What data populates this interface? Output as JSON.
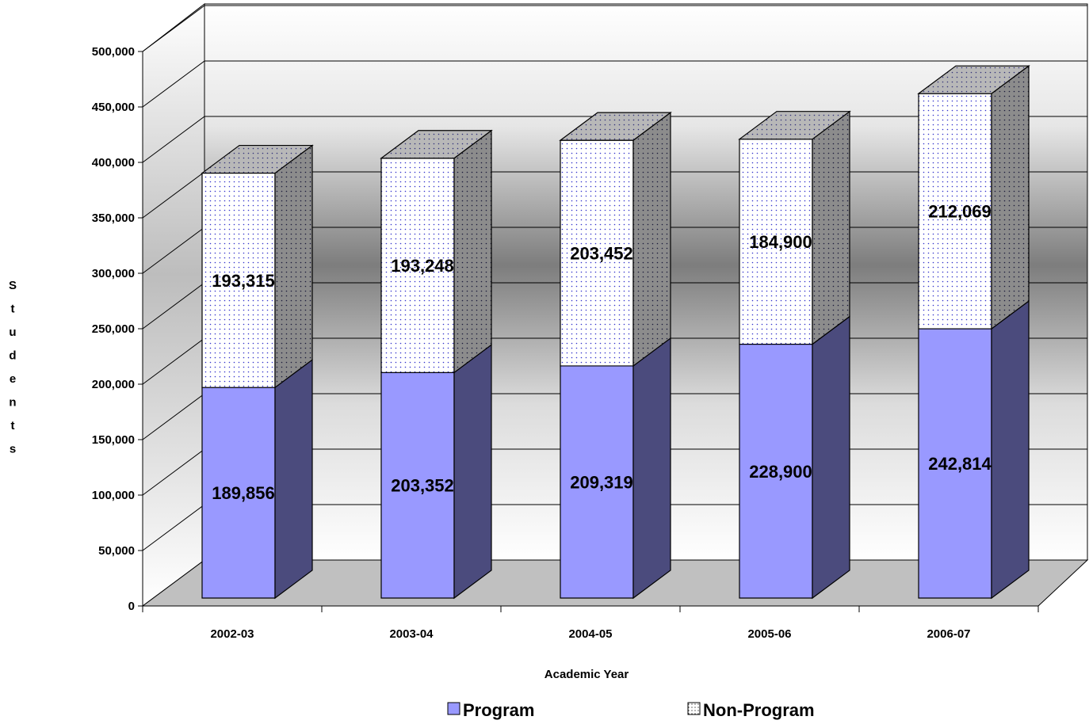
{
  "chart_data": {
    "type": "bar",
    "stacked": true,
    "three_d": true,
    "categories": [
      "2002-03",
      "2003-04",
      "2004-05",
      "2005-06",
      "2006-07"
    ],
    "series": [
      {
        "name": "Program",
        "values": [
          189856,
          203352,
          209319,
          228900,
          242814
        ],
        "color": "#9999FF",
        "side_color": "#4B4B7D"
      },
      {
        "name": "Non-Program",
        "values": [
          193315,
          193248,
          203452,
          184900,
          212069
        ],
        "color": "#FFFFFF",
        "dot_color": "#3333CC",
        "side_color": "#8C8C8C"
      }
    ],
    "data_labels": [
      [
        "189,856",
        "203,352",
        "209,319",
        "228,900",
        "242,814"
      ],
      [
        "193,315",
        "193,248",
        "203,452",
        "184,900",
        "212,069"
      ]
    ],
    "y_ticks": [
      "0",
      "50,000",
      "100,000",
      "150,000",
      "200,000",
      "250,000",
      "300,000",
      "350,000",
      "400,000",
      "450,000",
      "500,000"
    ],
    "ylim": [
      0,
      500000
    ],
    "xlabel": "Academic Year",
    "ylabel": "Students",
    "ylabel_letters": [
      "S",
      "t",
      "u",
      "d",
      "e",
      "n",
      "t",
      "s"
    ],
    "grid": true,
    "legend": {
      "placement": "bottom",
      "entries": [
        "Program",
        "Non-Program"
      ]
    }
  }
}
